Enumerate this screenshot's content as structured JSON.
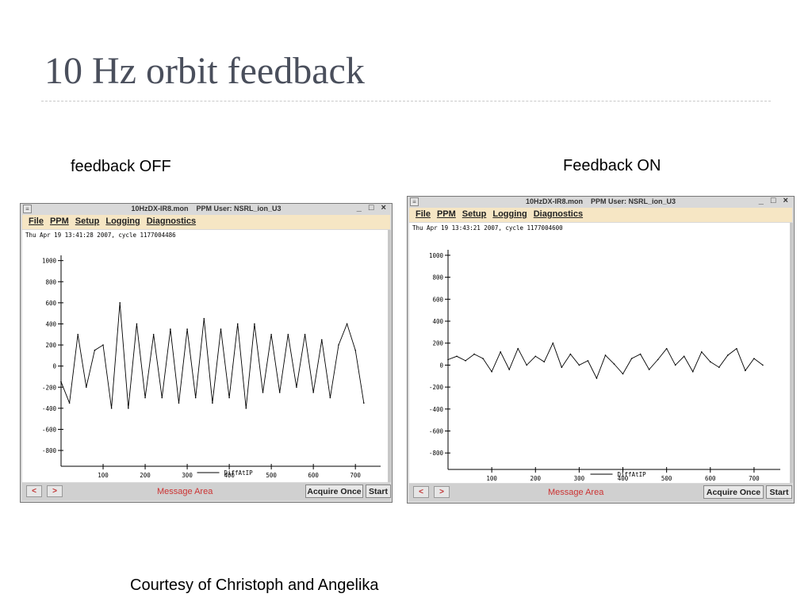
{
  "slide": {
    "title": "10 Hz orbit feedback",
    "caption_left": "feedback OFF",
    "caption_right": "Feedback ON",
    "courtesy": "Courtesy of Christoph and Angelika"
  },
  "windows": [
    {
      "title": "10HzDX-IR8.mon    PPM User: NSRL_ion_U3",
      "controls": "_ □ ×",
      "menu": [
        "File",
        "PPM",
        "Setup",
        "Logging",
        "Diagnostics"
      ],
      "timestamp": "Thu Apr 19 13:41:28 2007, cycle 1177004486",
      "legend": "DiffAtIP",
      "status": {
        "prev": "<",
        "next": ">",
        "message": "Message Area",
        "acquire": "Acquire Once",
        "start": "Start"
      }
    },
    {
      "title": "10HzDX-IR8.mon    PPM User: NSRL_ion_U3",
      "controls": "_ □ ×",
      "menu": [
        "File",
        "PPM",
        "Setup",
        "Logging",
        "Diagnostics"
      ],
      "timestamp": "Thu Apr 19 13:43:21 2007, cycle 1177004600",
      "legend": "DiffAtIP",
      "status": {
        "prev": "<",
        "next": ">",
        "message": "Message Area",
        "acquire": "Acquire Once",
        "start": "Start"
      }
    }
  ],
  "chart_data": [
    {
      "type": "line",
      "title": "",
      "xlabel": "",
      "ylabel": "",
      "xlim": [
        0,
        760
      ],
      "ylim": [
        -950,
        1050
      ],
      "xticks": [
        100,
        200,
        300,
        400,
        500,
        600,
        700
      ],
      "yticks": [
        -800,
        -600,
        -400,
        -200,
        0,
        200,
        400,
        600,
        800,
        1000
      ],
      "legend": "bottom-center",
      "series": [
        {
          "name": "DiffAtIP",
          "x": [
            0,
            20,
            40,
            60,
            80,
            100,
            120,
            140,
            160,
            180,
            200,
            220,
            240,
            260,
            280,
            300,
            320,
            340,
            360,
            380,
            400,
            420,
            440,
            460,
            480,
            500,
            520,
            540,
            560,
            580,
            600,
            620,
            640,
            660,
            680,
            700,
            720
          ],
          "y": [
            -150,
            -350,
            300,
            -200,
            150,
            200,
            -400,
            600,
            -400,
            400,
            -300,
            300,
            -300,
            350,
            -350,
            350,
            -300,
            450,
            -350,
            350,
            -300,
            400,
            -400,
            400,
            -250,
            300,
            -250,
            300,
            -200,
            300,
            -250,
            250,
            -300,
            200,
            400,
            150,
            -350
          ]
        }
      ]
    },
    {
      "type": "line",
      "title": "",
      "xlabel": "",
      "ylabel": "",
      "xlim": [
        0,
        760
      ],
      "ylim": [
        -950,
        1050
      ],
      "xticks": [
        100,
        200,
        300,
        400,
        500,
        600,
        700
      ],
      "yticks": [
        -800,
        -600,
        -400,
        -200,
        0,
        200,
        400,
        600,
        800,
        1000
      ],
      "legend": "bottom-center",
      "series": [
        {
          "name": "DiffAtIP",
          "x": [
            0,
            20,
            40,
            60,
            80,
            100,
            120,
            140,
            160,
            180,
            200,
            220,
            240,
            260,
            280,
            300,
            320,
            340,
            360,
            380,
            400,
            420,
            440,
            460,
            480,
            500,
            520,
            540,
            560,
            580,
            600,
            620,
            640,
            660,
            680,
            700,
            720
          ],
          "y": [
            50,
            80,
            40,
            100,
            60,
            -60,
            120,
            -40,
            150,
            0,
            80,
            30,
            200,
            -20,
            100,
            0,
            40,
            -120,
            90,
            10,
            -80,
            60,
            100,
            -40,
            50,
            150,
            0,
            80,
            -60,
            120,
            30,
            -20,
            90,
            150,
            -50,
            60,
            0
          ]
        }
      ]
    }
  ]
}
